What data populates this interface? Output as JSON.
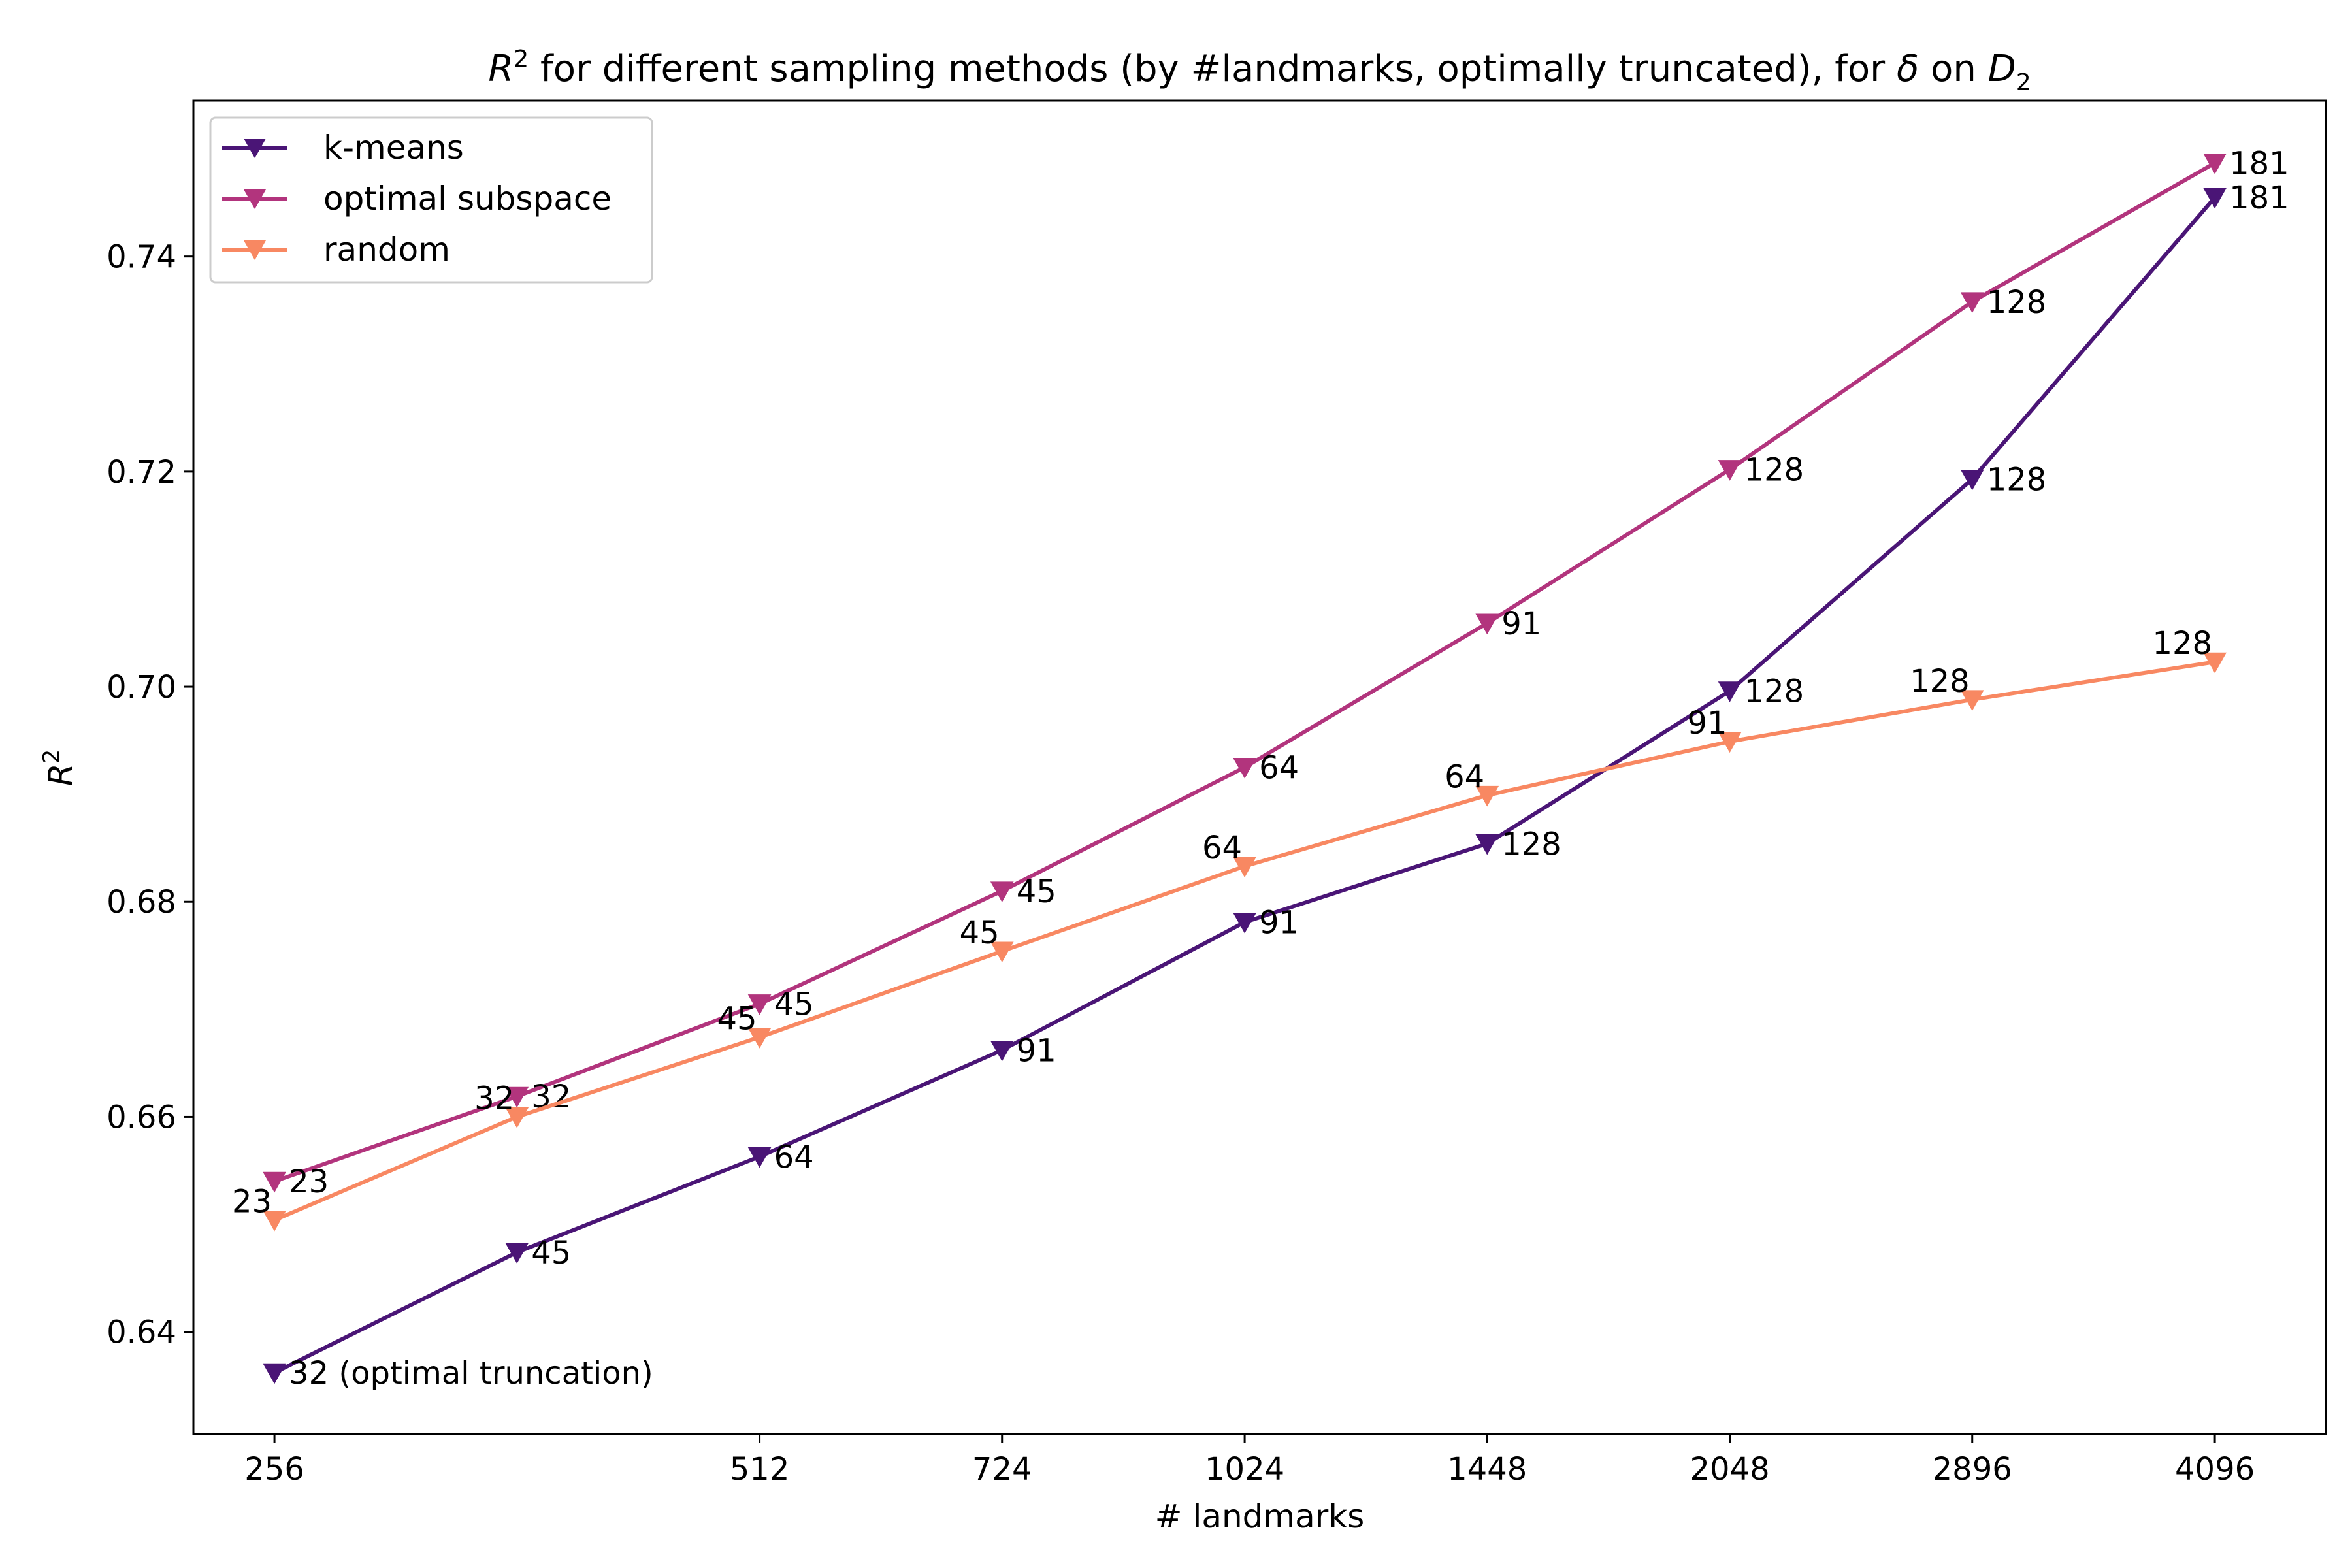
{
  "chart_data": {
    "type": "line",
    "title_main": "R",
    "title_sup": "2",
    "title_rest": " for different sampling methods (by #landmarks, optimally truncated), for ",
    "title_delta": "δ",
    "title_on": " on ",
    "title_D": "D",
    "title_sub": "2",
    "xlabel": "# landmarks",
    "ylabel_main": "R",
    "ylabel_sup": "2",
    "x_scale": "log2",
    "xlim": [
      228,
      4800
    ],
    "ylim": [
      0.6305,
      0.7545
    ],
    "xticks": [
      256,
      512,
      724,
      1024,
      1448,
      2048,
      2896,
      4096
    ],
    "xtick_labels": [
      "256",
      "512",
      "724",
      "1024",
      "1448",
      "2048",
      "2896",
      "4096"
    ],
    "yticks": [
      0.64,
      0.66,
      0.68,
      0.7,
      0.72,
      0.74
    ],
    "ytick_labels": [
      "0.64",
      "0.66",
      "0.68",
      "0.70",
      "0.72",
      "0.74"
    ],
    "grid": false,
    "legend_position": "upper-left",
    "marker": "triangle-down",
    "series": [
      {
        "name": "k-means",
        "color": "#4a1576",
        "label_side": "right",
        "x": [
          256,
          362,
          512,
          724,
          1024,
          1448,
          2048,
          2896,
          4096
        ],
        "y": [
          0.6362,
          0.6474,
          0.6563,
          0.6662,
          0.6781,
          0.6854,
          0.6996,
          0.7193,
          0.7455
        ],
        "labels": [
          "32 (optimal truncation)",
          "45",
          "64",
          "91",
          "91",
          "128",
          "128",
          "128",
          "181"
        ]
      },
      {
        "name": "optimal subspace",
        "color": "#b2347d",
        "label_side": "right",
        "x": [
          256,
          362,
          512,
          724,
          1024,
          1448,
          2048,
          2896,
          4096
        ],
        "y": [
          0.654,
          0.6619,
          0.6705,
          0.681,
          0.6925,
          0.7059,
          0.7202,
          0.7358,
          0.7487
        ],
        "labels": [
          "23",
          "32",
          "45",
          "45",
          "64",
          "91",
          "128",
          "128",
          "181"
        ]
      },
      {
        "name": "random",
        "color": "#f88862",
        "label_side": "left",
        "x": [
          256,
          362,
          512,
          724,
          1024,
          1448,
          2048,
          2896,
          4096
        ],
        "y": [
          0.6504,
          0.66,
          0.6674,
          0.6754,
          0.6833,
          0.6899,
          0.6949,
          0.6988,
          0.7023
        ],
        "labels": [
          "23",
          "32",
          "45",
          "45",
          "64",
          "64",
          "91",
          "128",
          "128"
        ]
      }
    ]
  }
}
